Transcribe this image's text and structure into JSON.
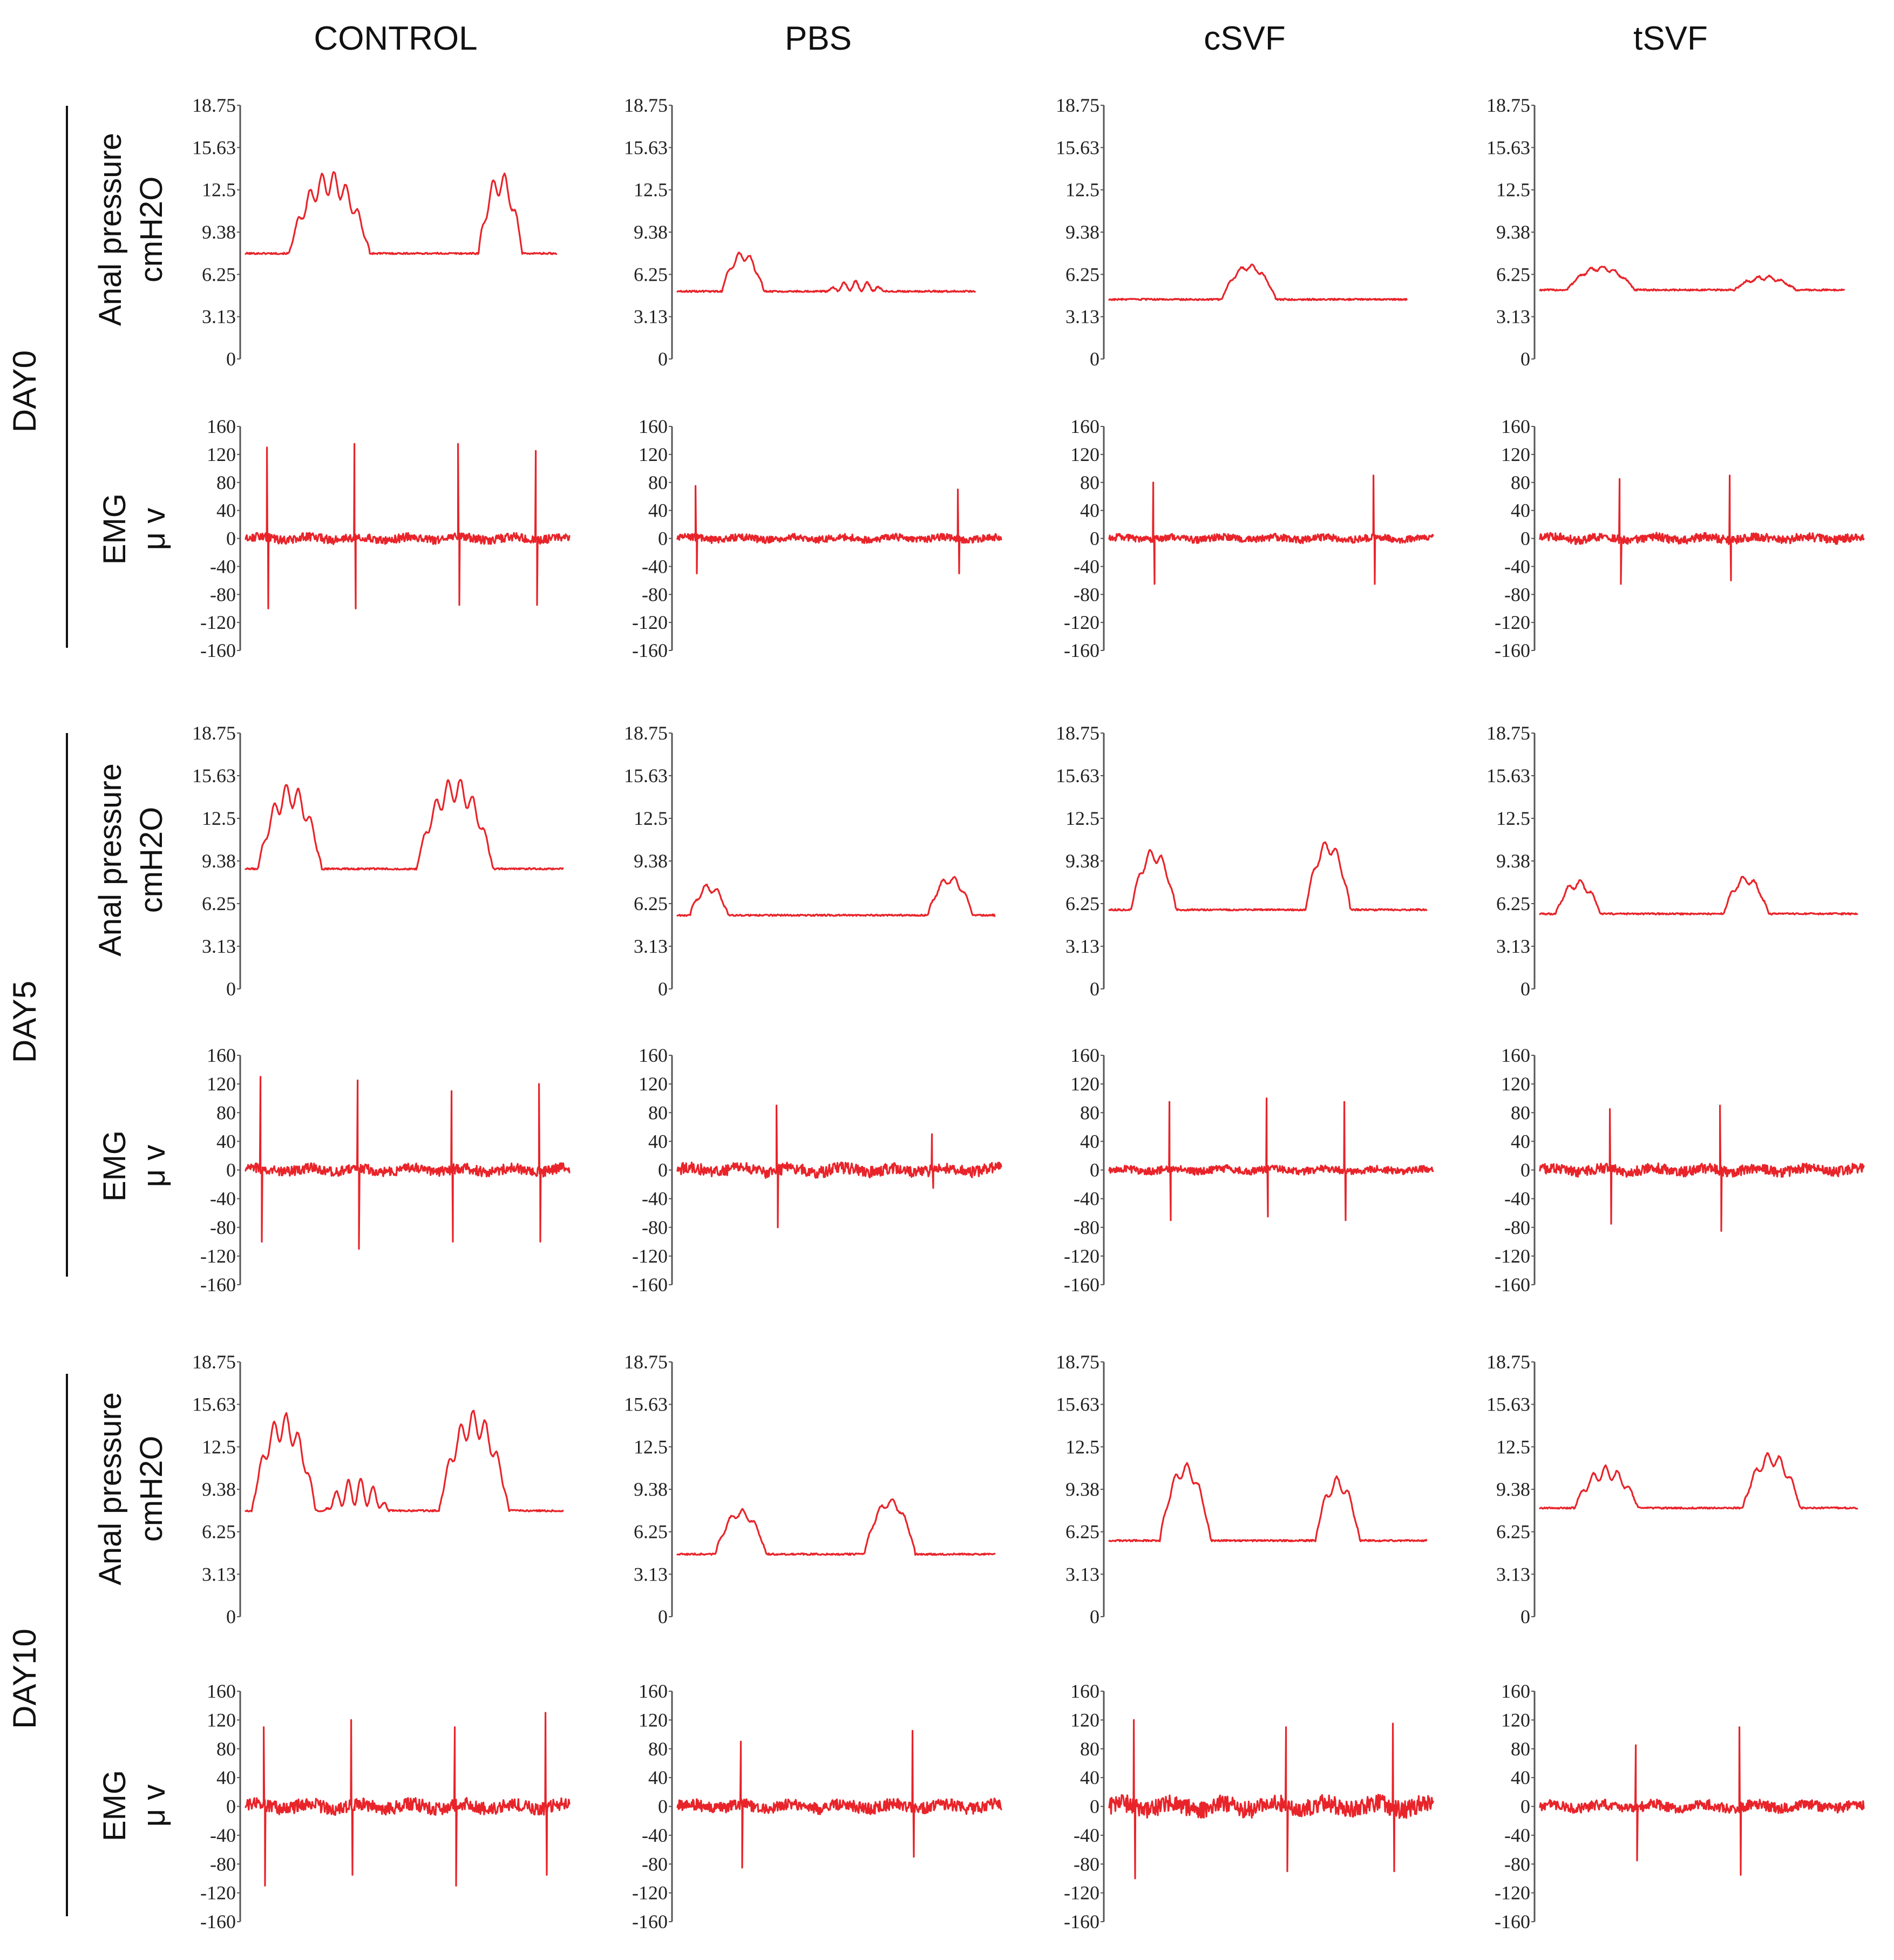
{
  "chart_data": {
    "type": "line",
    "columns": [
      "CONTROL",
      "PBS",
      "cSVF",
      "tSVF"
    ],
    "rows": [
      "DAY0",
      "DAY5",
      "DAY10"
    ],
    "pressure_axis": {
      "label_line1": "Anal pressure",
      "label_line2": "cmH2O",
      "ylim": [
        0,
        18.75
      ],
      "ticks": [
        "18.75",
        "15.63",
        "12.5",
        "9.38",
        "6.25",
        "3.13",
        "0"
      ]
    },
    "emg_axis": {
      "label_line1": "EMG",
      "label_line2": "μ v",
      "ylim": [
        -160,
        160
      ],
      "ticks": [
        "160",
        "120",
        "80",
        "40",
        "0",
        "-40",
        "-80",
        "-120",
        "-160"
      ]
    },
    "pressure_traces": [
      [
        {
          "name": "DAY0 CONTROL",
          "baseline": 7.8,
          "peaks": [
            {
              "pos": 0.27,
              "width": 0.26,
              "amp": 5.2
            },
            {
              "pos": 0.82,
              "width": 0.14,
              "amp": 5.2
            }
          ],
          "osc_amp": 0.9,
          "end": 0.96
        },
        {
          "name": "DAY0 PBS",
          "baseline": 5.0,
          "peaks": [
            {
              "pos": 0.22,
              "width": 0.14,
              "amp": 2.6
            },
            {
              "pos": 0.6,
              "width": 0.2,
              "amp": 0.4
            }
          ],
          "osc_amp": 0.35,
          "end": 0.92
        },
        {
          "name": "DAY0 cSVF",
          "baseline": 4.4,
          "peaks": [
            {
              "pos": 0.47,
              "width": 0.18,
              "amp": 2.4
            }
          ],
          "osc_amp": 0.2,
          "end": 0.92
        },
        {
          "name": "DAY0 tSVF",
          "baseline": 5.1,
          "peaks": [
            {
              "pos": 0.2,
              "width": 0.22,
              "amp": 1.6
            },
            {
              "pos": 0.74,
              "width": 0.2,
              "amp": 0.9
            }
          ],
          "osc_amp": 0.15,
          "end": 0.94
        }
      ],
      [
        {
          "name": "DAY5 CONTROL",
          "baseline": 8.8,
          "peaks": [
            {
              "pos": 0.14,
              "width": 0.2,
              "amp": 5.4
            },
            {
              "pos": 0.66,
              "width": 0.24,
              "amp": 5.8
            }
          ],
          "osc_amp": 0.9,
          "end": 0.98
        },
        {
          "name": "DAY5 PBS",
          "baseline": 5.4,
          "peaks": [
            {
              "pos": 0.1,
              "width": 0.12,
              "amp": 2.0
            },
            {
              "pos": 0.86,
              "width": 0.14,
              "amp": 2.6
            }
          ],
          "osc_amp": 0.3,
          "end": 0.98
        },
        {
          "name": "DAY5 cSVF",
          "baseline": 5.8,
          "peaks": [
            {
              "pos": 0.14,
              "width": 0.14,
              "amp": 4.0
            },
            {
              "pos": 0.69,
              "width": 0.14,
              "amp": 4.6
            }
          ],
          "osc_amp": 0.5,
          "end": 0.98
        },
        {
          "name": "DAY5 tSVF",
          "baseline": 5.5,
          "peaks": [
            {
              "pos": 0.12,
              "width": 0.14,
              "amp": 2.2
            },
            {
              "pos": 0.65,
              "width": 0.14,
              "amp": 2.5
            }
          ],
          "osc_amp": 0.3,
          "end": 0.98
        }
      ],
      [
        {
          "name": "DAY10 CONTROL",
          "baseline": 7.8,
          "peaks": [
            {
              "pos": 0.12,
              "width": 0.2,
              "amp": 6.2
            },
            {
              "pos": 0.72,
              "width": 0.22,
              "amp": 6.4
            },
            {
              "pos": 0.35,
              "width": 0.2,
              "amp": 1.4
            }
          ],
          "osc_amp": 1.0,
          "end": 0.98
        },
        {
          "name": "DAY10 PBS",
          "baseline": 4.6,
          "peaks": [
            {
              "pos": 0.2,
              "width": 0.16,
              "amp": 3.0
            },
            {
              "pos": 0.67,
              "width": 0.16,
              "amp": 3.8
            }
          ],
          "osc_amp": 0.3,
          "end": 0.98
        },
        {
          "name": "DAY10 cSVF",
          "baseline": 5.6,
          "peaks": [
            {
              "pos": 0.24,
              "width": 0.16,
              "amp": 5.2
            },
            {
              "pos": 0.72,
              "width": 0.14,
              "amp": 4.2
            }
          ],
          "osc_amp": 0.5,
          "end": 0.98
        },
        {
          "name": "DAY10 tSVF",
          "baseline": 8.0,
          "peaks": [
            {
              "pos": 0.21,
              "width": 0.2,
              "amp": 2.6
            },
            {
              "pos": 0.73,
              "width": 0.18,
              "amp": 3.6
            }
          ],
          "osc_amp": 0.5,
          "end": 0.98
        }
      ]
    ],
    "emg_traces": [
      [
        {
          "name": "DAY0 CONTROL",
          "spikes": [
            {
              "pos": 0.07,
              "up": 130,
              "down": -100
            },
            {
              "pos": 0.34,
              "up": 135,
              "down": -100
            },
            {
              "pos": 0.66,
              "up": 135,
              "down": -95
            },
            {
              "pos": 0.9,
              "up": 125,
              "down": -95
            }
          ],
          "noise": 6,
          "end": 1.0
        },
        {
          "name": "DAY0 PBS",
          "spikes": [
            {
              "pos": 0.06,
              "up": 75,
              "down": -50
            },
            {
              "pos": 0.87,
              "up": 70,
              "down": -50
            }
          ],
          "noise": 5,
          "end": 1.0
        },
        {
          "name": "DAY0 cSVF",
          "spikes": [
            {
              "pos": 0.14,
              "up": 80,
              "down": -65
            },
            {
              "pos": 0.82,
              "up": 90,
              "down": -65
            }
          ],
          "noise": 5,
          "end": 1.0
        },
        {
          "name": "DAY0 tSVF",
          "spikes": [
            {
              "pos": 0.25,
              "up": 85,
              "down": -65
            },
            {
              "pos": 0.59,
              "up": 90,
              "down": -60
            }
          ],
          "noise": 6,
          "end": 1.0
        }
      ],
      [
        {
          "name": "DAY5 CONTROL",
          "spikes": [
            {
              "pos": 0.05,
              "up": 130,
              "down": -100
            },
            {
              "pos": 0.35,
              "up": 125,
              "down": -110
            },
            {
              "pos": 0.64,
              "up": 110,
              "down": -100
            },
            {
              "pos": 0.91,
              "up": 120,
              "down": -100
            }
          ],
          "noise": 7,
          "end": 1.0
        },
        {
          "name": "DAY5 PBS",
          "spikes": [
            {
              "pos": 0.31,
              "up": 90,
              "down": -80
            },
            {
              "pos": 0.79,
              "up": 50,
              "down": -25
            }
          ],
          "noise": 8,
          "end": 1.0
        },
        {
          "name": "DAY5 cSVF",
          "spikes": [
            {
              "pos": 0.19,
              "up": 95,
              "down": -70
            },
            {
              "pos": 0.49,
              "up": 100,
              "down": -65
            },
            {
              "pos": 0.73,
              "up": 95,
              "down": -70
            }
          ],
          "noise": 5,
          "end": 1.0
        },
        {
          "name": "DAY5 tSVF",
          "spikes": [
            {
              "pos": 0.22,
              "up": 85,
              "down": -75
            },
            {
              "pos": 0.56,
              "up": 90,
              "down": -85
            }
          ],
          "noise": 7,
          "end": 1.0
        }
      ],
      [
        {
          "name": "DAY10 CONTROL",
          "spikes": [
            {
              "pos": 0.06,
              "up": 110,
              "down": -110
            },
            {
              "pos": 0.33,
              "up": 120,
              "down": -95
            },
            {
              "pos": 0.65,
              "up": 110,
              "down": -110
            },
            {
              "pos": 0.93,
              "up": 130,
              "down": -95
            }
          ],
          "noise": 9,
          "end": 1.0
        },
        {
          "name": "DAY10 PBS",
          "spikes": [
            {
              "pos": 0.2,
              "up": 90,
              "down": -85
            },
            {
              "pos": 0.73,
              "up": 105,
              "down": -70
            }
          ],
          "noise": 8,
          "end": 1.0
        },
        {
          "name": "DAY10 cSVF",
          "spikes": [
            {
              "pos": 0.08,
              "up": 120,
              "down": -100
            },
            {
              "pos": 0.55,
              "up": 110,
              "down": -90
            },
            {
              "pos": 0.88,
              "up": 115,
              "down": -90
            }
          ],
          "noise": 12,
          "end": 1.0
        },
        {
          "name": "DAY10 tSVF",
          "spikes": [
            {
              "pos": 0.3,
              "up": 85,
              "down": -75
            },
            {
              "pos": 0.62,
              "up": 110,
              "down": -95
            }
          ],
          "noise": 7,
          "end": 1.0
        }
      ]
    ]
  }
}
